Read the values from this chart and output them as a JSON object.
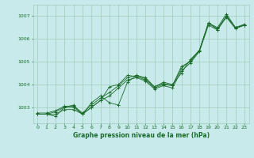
{
  "title": "Graphe pression niveau de la mer (hPa)",
  "bg_color": "#c8eaea",
  "grid_color": "#a0ccbb",
  "line_color": "#1a6b2a",
  "x_ticks": [
    0,
    1,
    2,
    3,
    4,
    5,
    6,
    7,
    8,
    9,
    10,
    11,
    12,
    13,
    14,
    15,
    16,
    17,
    18,
    19,
    20,
    21,
    22,
    23
  ],
  "y_ticks": [
    1003,
    1004,
    1005,
    1006,
    1007
  ],
  "ylim": [
    1002.3,
    1007.5
  ],
  "xlim": [
    -0.5,
    23.5
  ],
  "series": [
    [
      1002.7,
      1002.7,
      1002.6,
      1003.0,
      1003.0,
      1002.7,
      1003.2,
      1003.5,
      1003.2,
      1003.1,
      1004.1,
      1004.4,
      1004.3,
      1003.9,
      1004.1,
      1004.0,
      1004.5,
      1005.1,
      1005.5,
      1006.7,
      1006.5,
      1007.1,
      1006.5,
      1006.6
    ],
    [
      1002.7,
      1002.7,
      1002.8,
      1003.0,
      1003.1,
      1002.7,
      1003.0,
      1003.3,
      1003.9,
      1004.0,
      1004.4,
      1004.35,
      1004.2,
      1003.85,
      1004.0,
      1003.95,
      1004.8,
      1005.0,
      1005.5,
      1006.7,
      1006.4,
      1007.0,
      1006.5,
      1006.6
    ],
    [
      1002.75,
      1002.75,
      1002.85,
      1003.05,
      1003.05,
      1002.75,
      1003.1,
      1003.4,
      1003.65,
      1003.95,
      1004.3,
      1004.4,
      1004.25,
      1003.9,
      1004.05,
      1003.95,
      1004.7,
      1005.05,
      1005.5,
      1006.7,
      1006.45,
      1007.0,
      1006.5,
      1006.65
    ],
    [
      1002.7,
      1002.7,
      1002.7,
      1002.9,
      1002.9,
      1002.7,
      1003.0,
      1003.3,
      1003.5,
      1003.85,
      1004.2,
      1004.3,
      1004.15,
      1003.8,
      1003.95,
      1003.85,
      1004.6,
      1004.95,
      1005.45,
      1006.6,
      1006.4,
      1006.95,
      1006.45,
      1006.6
    ]
  ],
  "title_fontsize": 5.5,
  "tick_fontsize": 4.5
}
